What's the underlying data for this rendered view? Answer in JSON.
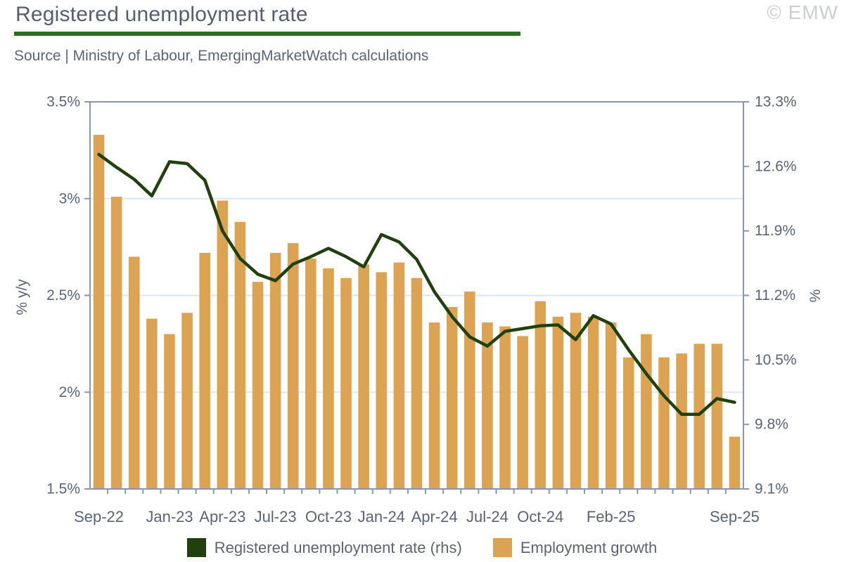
{
  "header": {
    "title": "Registered unemployment rate",
    "source": "Source | Ministry of Labour, EmergingMarketWatch calculations",
    "watermark": "© EMW"
  },
  "legend": [
    {
      "label": "Registered unemployment rate (rhs)",
      "color": "#20400e"
    },
    {
      "label": "Employment growth",
      "color": "#dca352"
    }
  ],
  "colors": {
    "bar": "#dca352",
    "line": "#20400e",
    "accent_green": "#2f6b28",
    "text": "#5b6477",
    "spine": "#8d95a8",
    "gridline": "#dfe5f0",
    "watermark": "#c9ced8"
  },
  "chart_data": {
    "type": "bar",
    "subtype": "bar+line dual axis",
    "title": "Registered unemployment rate",
    "categories": [
      "Sep-22",
      "Oct-22",
      "Nov-22",
      "Dec-22",
      "Jan-23",
      "Feb-23",
      "Mar-23",
      "Apr-23",
      "May-23",
      "Jun-23",
      "Jul-23",
      "Aug-23",
      "Sep-23",
      "Oct-23",
      "Nov-23",
      "Dec-23",
      "Jan-24",
      "Feb-24",
      "Mar-24",
      "Apr-24",
      "May-24",
      "Jun-24",
      "Jul-24",
      "Aug-24",
      "Sep-24",
      "Oct-24",
      "Nov-24",
      "Dec-24",
      "Jan-25",
      "Feb-25",
      "Mar-25",
      "Apr-25",
      "May-25",
      "Jun-25",
      "Jul-25",
      "Aug-25",
      "Sep-25"
    ],
    "series": [
      {
        "name": "Employment growth",
        "type": "bar",
        "axis": "left",
        "color": "#dca352",
        "values": [
          3.33,
          3.01,
          2.7,
          2.38,
          2.3,
          2.41,
          2.72,
          2.99,
          2.88,
          2.57,
          2.72,
          2.77,
          2.69,
          2.64,
          2.59,
          2.66,
          2.62,
          2.67,
          2.59,
          2.36,
          2.44,
          2.52,
          2.36,
          2.34,
          2.29,
          2.47,
          2.39,
          2.41,
          2.39,
          2.36,
          2.18,
          2.3,
          2.18,
          2.2,
          2.25,
          2.25,
          1.77
        ]
      },
      {
        "name": "Registered unemployment rate (rhs)",
        "type": "line",
        "axis": "right",
        "color": "#20400e",
        "values": [
          12.73,
          12.59,
          12.46,
          12.28,
          12.65,
          12.63,
          12.45,
          11.9,
          11.6,
          11.43,
          11.36,
          11.54,
          11.62,
          11.71,
          11.62,
          11.51,
          11.86,
          11.78,
          11.59,
          11.24,
          10.97,
          10.75,
          10.65,
          10.81,
          10.84,
          10.87,
          10.88,
          10.72,
          10.98,
          10.89,
          10.61,
          10.35,
          10.11,
          9.91,
          9.91,
          10.08,
          10.04
        ]
      }
    ],
    "left_axis": {
      "label": "% y/y",
      "min": 1.5,
      "max": 3.5,
      "tick_values": [
        3.5,
        3.0,
        2.5,
        2.0,
        1.5
      ],
      "tick_labels": [
        "3.5%",
        "3%",
        "2.5%",
        "2%",
        "1.5%"
      ]
    },
    "right_axis": {
      "label": "%",
      "min": 9.1,
      "max": 13.3,
      "tick_values": [
        13.3,
        12.6,
        11.9,
        11.2,
        10.5,
        9.8,
        9.1
      ],
      "tick_labels": [
        "13.3%",
        "12.6%",
        "11.9%",
        "11.2%",
        "10.5%",
        "9.8%",
        "9.1%"
      ]
    },
    "x_axis": {
      "tick_labels": [
        {
          "label": "Sep-22",
          "month_index": 0
        },
        {
          "label": "Jan-23",
          "month_index": 4
        },
        {
          "label": "Apr-23",
          "month_index": 7
        },
        {
          "label": "Jul-23",
          "month_index": 10
        },
        {
          "label": "Oct-23",
          "month_index": 13
        },
        {
          "label": "Jan-24",
          "month_index": 16
        },
        {
          "label": "Apr-24",
          "month_index": 19
        },
        {
          "label": "Jul-24",
          "month_index": 22
        },
        {
          "label": "Oct-24",
          "month_index": 25
        },
        {
          "label": "Feb-25",
          "month_index": 29
        },
        {
          "label": "Sep-25",
          "month_index": 36
        }
      ]
    },
    "grid": "horizontal gridlines at interior left-axis ticks",
    "legend_position": "bottom-center"
  }
}
